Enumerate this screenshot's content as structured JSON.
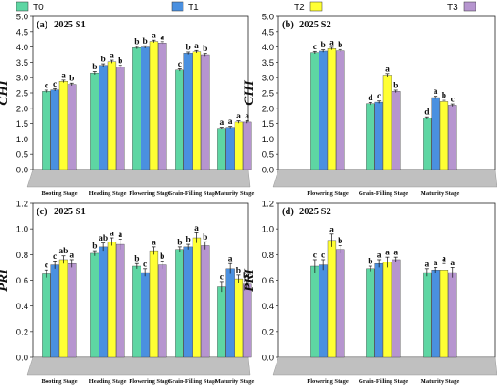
{
  "colors": {
    "T0": "#5ed6a3",
    "T1": "#4a90e0",
    "T2": "#ffff33",
    "T3": "#b695cf",
    "floor": "#c0c0c0"
  },
  "legend": [
    "T0",
    "T1",
    "T2",
    "T3"
  ],
  "chart_data": [
    {
      "type": "bar",
      "panel": "(a)",
      "title": "2025 S1",
      "ylabel": "CHI",
      "ylim": [
        0,
        5.0
      ],
      "yticks": [
        "0.0",
        "0.5",
        "1.0",
        "1.5",
        "2.0",
        "2.5",
        "3.0",
        "3.5",
        "4.0",
        "4.5",
        "5.0"
      ],
      "categories": [
        "Booting Stage",
        "Heading Stage",
        "Flowering Stage",
        "Grain-Filling Stage",
        "Maturity Stage"
      ],
      "series": [
        {
          "name": "T0",
          "values": [
            2.55,
            3.15,
            3.98,
            3.25,
            1.35
          ],
          "err": [
            0.04,
            0.05,
            0.04,
            0.04,
            0.03
          ],
          "letters": [
            "c",
            "b",
            "b",
            "c",
            "a"
          ]
        },
        {
          "name": "T1",
          "values": [
            2.6,
            3.4,
            4.0,
            3.8,
            1.38
          ],
          "err": [
            0.04,
            0.05,
            0.04,
            0.04,
            0.03
          ],
          "letters": [
            "c",
            "b",
            "b",
            "b",
            "a"
          ]
        },
        {
          "name": "T2",
          "values": [
            2.88,
            3.52,
            4.18,
            3.85,
            1.55
          ],
          "err": [
            0.04,
            0.05,
            0.04,
            0.04,
            0.04
          ],
          "letters": [
            "a",
            "a",
            "a",
            "a",
            "a"
          ]
        },
        {
          "name": "T3",
          "values": [
            2.78,
            3.35,
            4.13,
            3.75,
            1.55
          ],
          "err": [
            0.04,
            0.05,
            0.04,
            0.04,
            0.04
          ],
          "letters": [
            "b",
            "b",
            "a",
            "b",
            "a"
          ]
        }
      ]
    },
    {
      "type": "bar",
      "panel": "(b)",
      "title": "2025 S2",
      "ylabel": "CHI",
      "ylim": [
        0,
        5.0
      ],
      "yticks": [
        "0.0",
        "0.5",
        "1.0",
        "1.5",
        "2.0",
        "2.5",
        "3.0",
        "3.5",
        "4.0",
        "4.5",
        "5.0"
      ],
      "categories": [
        "Flowering Stage",
        "Grain-Filling Stage",
        "Maturity Stage"
      ],
      "series": [
        {
          "name": "T0",
          "values": [
            3.82,
            2.15,
            1.68
          ],
          "err": [
            0.04,
            0.04,
            0.04
          ],
          "letters": [
            "c",
            "d",
            "d"
          ]
        },
        {
          "name": "T1",
          "values": [
            3.87,
            2.2,
            2.35
          ],
          "err": [
            0.04,
            0.04,
            0.04
          ],
          "letters": [
            "b",
            "c",
            "a"
          ]
        },
        {
          "name": "T2",
          "values": [
            3.95,
            3.08,
            2.22
          ],
          "err": [
            0.04,
            0.05,
            0.04
          ],
          "letters": [
            "a",
            "a",
            "b"
          ]
        },
        {
          "name": "T3",
          "values": [
            3.88,
            2.55,
            2.1
          ],
          "err": [
            0.04,
            0.04,
            0.04
          ],
          "letters": [
            "b",
            "b",
            "c"
          ]
        }
      ]
    },
    {
      "type": "bar",
      "panel": "(c)",
      "title": "2025 S1",
      "ylabel": "PRI",
      "ylim": [
        0,
        1.2
      ],
      "yticks": [
        "0.0",
        "0.2",
        "0.4",
        "0.6",
        "0.8",
        "1.0",
        "1.2"
      ],
      "categories": [
        "Booting Stage",
        "Heading Stage",
        "Flowering Stage",
        "Grain-Filling Stage",
        "Maturity Stage"
      ],
      "series": [
        {
          "name": "T0",
          "values": [
            0.65,
            0.81,
            0.71,
            0.84,
            0.55
          ],
          "err": [
            0.03,
            0.02,
            0.02,
            0.02,
            0.04
          ],
          "letters": [
            "c",
            "b",
            "b",
            "b",
            "c"
          ]
        },
        {
          "name": "T1",
          "values": [
            0.72,
            0.86,
            0.66,
            0.86,
            0.69
          ],
          "err": [
            0.03,
            0.03,
            0.03,
            0.02,
            0.04
          ],
          "letters": [
            "c",
            "ab",
            "c",
            "b",
            "a"
          ]
        },
        {
          "name": "T2",
          "values": [
            0.76,
            0.9,
            0.83,
            0.93,
            0.61
          ],
          "err": [
            0.03,
            0.03,
            0.03,
            0.04,
            0.03
          ],
          "letters": [
            "ab",
            "a",
            "a",
            "a",
            "b"
          ]
        },
        {
          "name": "T3",
          "values": [
            0.73,
            0.88,
            0.72,
            0.87,
            0.57
          ],
          "err": [
            0.03,
            0.04,
            0.03,
            0.03,
            0.03
          ],
          "letters": [
            "a",
            "a",
            "b",
            "b",
            "bc"
          ]
        }
      ]
    },
    {
      "type": "bar",
      "panel": "(d)",
      "title": "2025 S2",
      "ylabel": "PRI",
      "ylim": [
        0,
        1.2
      ],
      "yticks": [
        "0.0",
        "0.2",
        "0.4",
        "0.6",
        "0.8",
        "1.0",
        "1.2"
      ],
      "categories": [
        "Flowering Stage",
        "Grain-Filling Stage",
        "Maturity Stage"
      ],
      "series": [
        {
          "name": "T0",
          "values": [
            0.71,
            0.69,
            0.66
          ],
          "err": [
            0.05,
            0.02,
            0.03
          ],
          "letters": [
            "c",
            "b",
            "a"
          ]
        },
        {
          "name": "T1",
          "values": [
            0.72,
            0.73,
            0.68
          ],
          "err": [
            0.04,
            0.03,
            0.02
          ],
          "letters": [
            "c",
            "a",
            "a"
          ]
        },
        {
          "name": "T2",
          "values": [
            0.91,
            0.74,
            0.68
          ],
          "err": [
            0.05,
            0.04,
            0.05
          ],
          "letters": [
            "a",
            "a",
            "a"
          ]
        },
        {
          "name": "T3",
          "values": [
            0.84,
            0.76,
            0.66
          ],
          "err": [
            0.03,
            0.02,
            0.04
          ],
          "letters": [
            "b",
            "a",
            "a"
          ]
        }
      ]
    }
  ]
}
